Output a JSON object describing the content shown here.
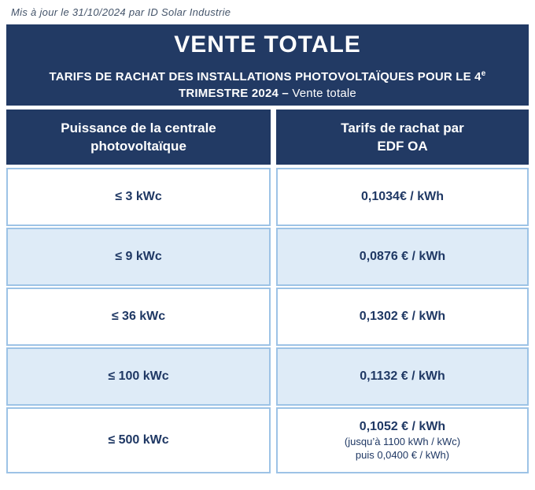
{
  "caption": "Mis à jour le 31/10/2024 par ID Solar Industrie",
  "title_band": {
    "title": "VENTE TOTALE",
    "subtitle_line1": "TARIFS DE RACHAT DES INSTALLATIONS PHOTOVOLTAÏQUES POUR LE 4",
    "subtitle_sup": "e",
    "subtitle_line2_bold": "TRIMESTRE 2024 – ",
    "subtitle_line2_regular": "Vente totale"
  },
  "table": {
    "headers": {
      "power": {
        "line1": "Puissance de la centrale",
        "line2": "photovoltaïque"
      },
      "tariff": {
        "line1": "Tarifs de rachat par",
        "line2": "EDF OA"
      }
    },
    "rows": [
      {
        "power": "≤ 3 kWc",
        "tariff": "0,1034€ / kWh"
      },
      {
        "power": "≤ 9 kWc",
        "tariff": "0,0876 € / kWh"
      },
      {
        "power": "≤ 36 kWc",
        "tariff": "0,1302 € / kWh"
      },
      {
        "power": "≤ 100 kWc",
        "tariff": "0,1132 € / kWh"
      },
      {
        "power": "≤ 500 kWc",
        "tariff": "0,1052 € / kWh",
        "note1": "(jusqu’à 1100 kWh / kWc)",
        "note2": "puis 0,0400 € / kWh)"
      }
    ]
  },
  "colors": {
    "band_navy": "#223a64",
    "text_navy": "#1f3864",
    "row_alt_fill": "#deebf7",
    "cell_border": "#9dc3e6",
    "caption_text": "#44546a"
  }
}
